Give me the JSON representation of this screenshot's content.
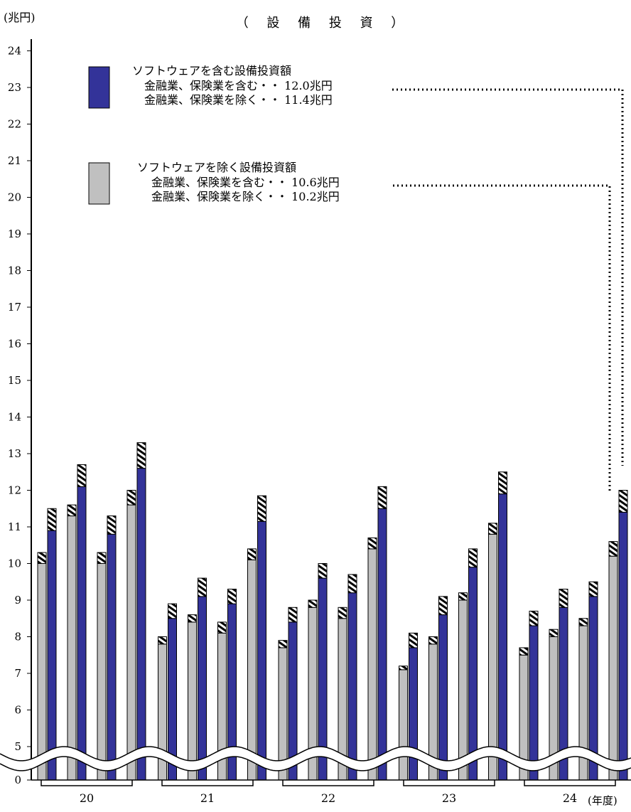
{
  "chart_data": {
    "type": "bar",
    "title": "（ 設 備 投 資 ）",
    "y_unit_label": "(兆円)",
    "x_unit_label": "(年度)",
    "yticks": [
      "0",
      "5",
      "6",
      "7",
      "8",
      "9",
      "10",
      "11",
      "12",
      "13",
      "14",
      "15",
      "16",
      "17",
      "18",
      "19",
      "20",
      "21",
      "22",
      "23",
      "24"
    ],
    "axis_break": true,
    "year_groups": [
      "20",
      "21",
      "22",
      "23",
      "24"
    ],
    "quarters_per_year": 4,
    "ylim": [
      5,
      24
    ],
    "legend": {
      "include_software": {
        "title": "ソフトウェアを含む設備投資額",
        "line1": "金融業、保険業を含む・・ 12.0兆円",
        "line2": "金融業、保険業を除く・・ 11.4兆円",
        "color": "#333399"
      },
      "exclude_software": {
        "title": "ソフトウェアを除く設備投資額",
        "line1": "金融業、保険業を含む・・ 10.6兆円",
        "line2": "金融業、保険業を除く・・ 10.2兆円",
        "color": "#c0c0c0"
      }
    },
    "series": [
      {
        "name": "ソフトウェアを除く設備投資額 金融業、保険業を除く",
        "values": [
          10.0,
          11.3,
          10.0,
          11.6,
          7.8,
          8.4,
          8.1,
          10.1,
          7.7,
          8.8,
          8.5,
          10.4,
          7.1,
          7.8,
          9.0,
          10.8,
          7.5,
          8.0,
          8.3,
          10.2
        ]
      },
      {
        "name": "ソフトウェアを除く設備投資額 金融業、保険業を含む",
        "values": [
          10.3,
          11.6,
          10.3,
          12.0,
          8.0,
          8.6,
          8.4,
          10.4,
          7.9,
          9.0,
          8.8,
          10.7,
          7.2,
          8.0,
          9.2,
          11.1,
          7.7,
          8.2,
          8.5,
          10.6
        ]
      },
      {
        "name": "ソフトウェアを含む設備投資額 金融業、保険業を除く",
        "values": [
          10.9,
          12.1,
          10.8,
          12.6,
          8.5,
          9.1,
          8.9,
          11.15,
          8.4,
          9.6,
          9.2,
          11.5,
          7.7,
          8.6,
          9.9,
          11.9,
          8.3,
          8.8,
          9.1,
          11.4
        ]
      },
      {
        "name": "ソフトウェアを含む設備投資額 金融業、保険業を含む",
        "values": [
          11.5,
          12.7,
          11.3,
          13.3,
          8.9,
          9.6,
          9.3,
          11.85,
          8.8,
          10.0,
          9.7,
          12.1,
          8.1,
          9.1,
          10.4,
          12.5,
          8.7,
          9.3,
          9.5,
          12.0
        ]
      }
    ]
  }
}
